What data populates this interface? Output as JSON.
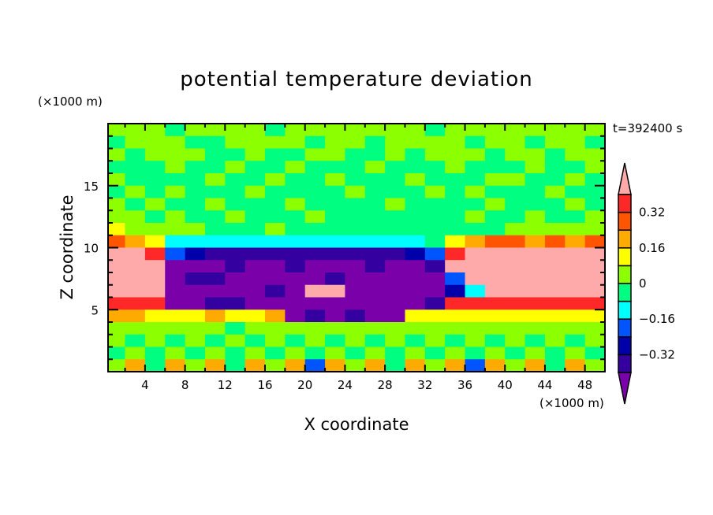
{
  "chart_data": {
    "type": "heatmap",
    "title": "potential temperature deviation",
    "xlabel": "X coordinate",
    "ylabel": "Z coordinate",
    "x_unit": "(×1000 m)",
    "y_unit": "(×1000 m)",
    "annotation": "t=392400 s",
    "xlim": [
      0.3,
      50
    ],
    "ylim": [
      0,
      20
    ],
    "xticks": [
      4,
      8,
      12,
      16,
      20,
      24,
      28,
      32,
      36,
      40,
      44,
      48
    ],
    "yticks": [
      5,
      10,
      15
    ],
    "grid": false,
    "colorbar": {
      "levels": [
        -0.4,
        -0.32,
        -0.24,
        -0.16,
        -0.08,
        0,
        0.08,
        0.16,
        0.24,
        0.32,
        0.4
      ],
      "tick_labels": [
        "0.32",
        "0.16",
        "0",
        "−0.16",
        "−0.32"
      ],
      "tick_values": [
        0.32,
        0.16,
        0,
        -0.16,
        -0.32
      ],
      "colors": [
        "#7a00aa",
        "#3400a0",
        "#0000aa",
        "#0055ff",
        "#00ffff",
        "#00ff80",
        "#8cff00",
        "#ffff00",
        "#ffaa00",
        "#ff5500",
        "#ff2828",
        "#ffaaaa"
      ],
      "extend": "both"
    },
    "x": [
      1,
      3,
      5,
      7,
      9,
      11,
      13,
      15,
      17,
      19,
      21,
      23,
      25,
      27,
      29,
      31,
      33,
      35,
      37,
      39,
      41,
      43,
      45,
      47,
      49
    ],
    "y": [
      19.5,
      18.5,
      17.5,
      16.5,
      15.5,
      14.5,
      13.5,
      12.5,
      11.5,
      10.5,
      9.5,
      8.5,
      7.5,
      6.5,
      5.5,
      4.5,
      3.5,
      2.5,
      1.5,
      0.5
    ],
    "values": [
      [
        0.04,
        0.04,
        0.04,
        -0.04,
        0.04,
        0.04,
        0.04,
        0.04,
        -0.04,
        0.04,
        0.04,
        0.04,
        0.04,
        0.04,
        0.04,
        0.04,
        -0.04,
        0.04,
        0.04,
        0.04,
        0.04,
        0.04,
        0.04,
        0.04,
        0.04
      ],
      [
        -0.04,
        0.04,
        0.04,
        0.04,
        -0.04,
        -0.04,
        0.04,
        0.04,
        0.04,
        0.04,
        -0.04,
        0.04,
        0.04,
        -0.04,
        0.04,
        0.04,
        0.04,
        0.04,
        -0.04,
        0.04,
        0.04,
        -0.04,
        0.04,
        0.04,
        -0.04
      ],
      [
        0.04,
        -0.04,
        0.04,
        0.04,
        0.04,
        -0.04,
        -0.04,
        0.04,
        -0.04,
        -0.04,
        0.04,
        0.04,
        -0.04,
        -0.04,
        0.04,
        -0.04,
        0.04,
        0.04,
        0.04,
        -0.04,
        0.04,
        0.04,
        -0.04,
        0.04,
        0.04
      ],
      [
        -0.04,
        -0.04,
        -0.04,
        0.04,
        -0.04,
        -0.04,
        0.04,
        -0.04,
        -0.04,
        0.04,
        -0.04,
        -0.04,
        -0.04,
        0.04,
        -0.04,
        -0.04,
        -0.04,
        0.04,
        -0.04,
        -0.04,
        -0.04,
        0.04,
        -0.04,
        -0.04,
        0.04
      ],
      [
        0.04,
        -0.04,
        -0.04,
        -0.04,
        -0.04,
        0.04,
        -0.04,
        -0.04,
        0.04,
        -0.04,
        -0.04,
        0.04,
        -0.04,
        -0.04,
        -0.04,
        0.04,
        -0.04,
        -0.04,
        -0.04,
        0.04,
        0.04,
        -0.04,
        -0.04,
        0.04,
        -0.04
      ],
      [
        -0.04,
        0.04,
        -0.04,
        0.04,
        -0.04,
        -0.04,
        -0.04,
        0.04,
        -0.04,
        -0.04,
        -0.04,
        -0.04,
        0.04,
        -0.04,
        -0.04,
        -0.04,
        0.04,
        -0.04,
        0.04,
        -0.04,
        -0.04,
        -0.04,
        0.04,
        -0.04,
        -0.04
      ],
      [
        0.04,
        -0.04,
        0.04,
        -0.04,
        -0.04,
        0.04,
        -0.04,
        -0.04,
        -0.04,
        0.04,
        -0.04,
        -0.04,
        -0.04,
        -0.04,
        0.04,
        -0.04,
        -0.04,
        -0.04,
        -0.04,
        0.04,
        -0.04,
        -0.04,
        -0.04,
        0.04,
        -0.04
      ],
      [
        0.04,
        0.04,
        -0.04,
        0.04,
        -0.04,
        -0.04,
        0.04,
        -0.04,
        -0.04,
        -0.04,
        0.04,
        -0.04,
        -0.04,
        -0.04,
        -0.04,
        -0.04,
        -0.04,
        -0.04,
        0.04,
        -0.04,
        -0.04,
        0.04,
        -0.04,
        -0.04,
        0.04
      ],
      [
        0.12,
        0.04,
        0.04,
        0.04,
        0.04,
        -0.04,
        -0.04,
        -0.04,
        0.04,
        -0.04,
        -0.04,
        -0.04,
        -0.04,
        -0.04,
        -0.04,
        -0.04,
        -0.04,
        -0.04,
        -0.04,
        -0.04,
        0.04,
        0.04,
        0.04,
        0.04,
        0.04
      ],
      [
        0.28,
        0.2,
        0.12,
        -0.12,
        -0.12,
        -0.12,
        -0.12,
        -0.12,
        -0.12,
        -0.12,
        -0.12,
        -0.12,
        -0.12,
        -0.12,
        -0.12,
        -0.12,
        -0.04,
        0.12,
        0.2,
        0.28,
        0.28,
        0.2,
        0.28,
        0.2,
        0.28
      ],
      [
        0.45,
        0.45,
        0.36,
        -0.2,
        -0.28,
        -0.35,
        -0.35,
        -0.35,
        -0.35,
        -0.35,
        -0.35,
        -0.35,
        -0.35,
        -0.35,
        -0.35,
        -0.28,
        -0.2,
        0.36,
        0.45,
        0.45,
        0.45,
        0.45,
        0.45,
        0.45,
        0.45
      ],
      [
        0.45,
        0.45,
        0.45,
        -0.45,
        -0.45,
        -0.45,
        -0.35,
        -0.45,
        -0.45,
        -0.35,
        -0.45,
        -0.45,
        -0.45,
        -0.35,
        -0.45,
        -0.45,
        -0.35,
        0.45,
        0.45,
        0.45,
        0.45,
        0.45,
        0.45,
        0.45,
        0.45
      ],
      [
        0.45,
        0.45,
        0.45,
        -0.45,
        -0.35,
        -0.35,
        -0.45,
        -0.45,
        -0.45,
        -0.45,
        -0.45,
        -0.35,
        -0.45,
        -0.45,
        -0.45,
        -0.45,
        -0.45,
        -0.2,
        0.45,
        0.45,
        0.45,
        0.45,
        0.45,
        0.45,
        0.45
      ],
      [
        0.45,
        0.45,
        0.45,
        -0.45,
        -0.45,
        -0.45,
        -0.45,
        -0.45,
        -0.35,
        -0.45,
        0.45,
        0.45,
        -0.45,
        -0.45,
        -0.45,
        -0.45,
        -0.45,
        -0.28,
        -0.12,
        0.45,
        0.45,
        0.45,
        0.45,
        0.45,
        0.45
      ],
      [
        0.36,
        0.36,
        0.36,
        -0.45,
        -0.45,
        -0.35,
        -0.35,
        -0.45,
        -0.45,
        -0.45,
        -0.45,
        -0.45,
        -0.45,
        -0.45,
        -0.45,
        -0.45,
        -0.35,
        0.36,
        0.36,
        0.36,
        0.36,
        0.36,
        0.36,
        0.36,
        0.36
      ],
      [
        0.2,
        0.2,
        0.12,
        0.12,
        0.12,
        0.2,
        0.12,
        0.12,
        0.2,
        -0.45,
        -0.35,
        -0.45,
        -0.35,
        -0.45,
        -0.45,
        0.12,
        0.12,
        0.12,
        0.12,
        0.12,
        0.12,
        0.12,
        0.12,
        0.12,
        0.12
      ],
      [
        0.04,
        0.04,
        0.04,
        0.04,
        0.04,
        0.04,
        -0.04,
        0.04,
        0.04,
        0.04,
        0.04,
        0.04,
        0.04,
        0.04,
        0.04,
        0.04,
        0.04,
        0.04,
        0.04,
        0.04,
        0.04,
        0.04,
        0.04,
        0.04,
        0.04
      ],
      [
        0.04,
        -0.04,
        0.04,
        -0.04,
        0.04,
        -0.04,
        0.04,
        -0.04,
        0.04,
        -0.04,
        0.04,
        -0.04,
        0.04,
        -0.04,
        0.04,
        -0.04,
        0.04,
        -0.04,
        0.04,
        -0.04,
        0.04,
        -0.04,
        0.04,
        -0.04,
        0.04
      ],
      [
        -0.04,
        0.04,
        -0.04,
        0.04,
        -0.04,
        0.04,
        -0.04,
        0.04,
        -0.04,
        0.04,
        -0.04,
        0.04,
        -0.04,
        0.04,
        -0.04,
        0.04,
        -0.04,
        0.04,
        -0.04,
        0.04,
        -0.04,
        0.04,
        -0.04,
        0.04,
        -0.04
      ],
      [
        0.04,
        0.2,
        -0.04,
        0.2,
        0.04,
        0.2,
        -0.04,
        0.2,
        0.04,
        0.2,
        -0.2,
        0.2,
        0.04,
        0.2,
        -0.04,
        0.2,
        0.04,
        0.2,
        -0.2,
        0.2,
        0.04,
        0.2,
        -0.04,
        0.2,
        0.04
      ]
    ]
  }
}
